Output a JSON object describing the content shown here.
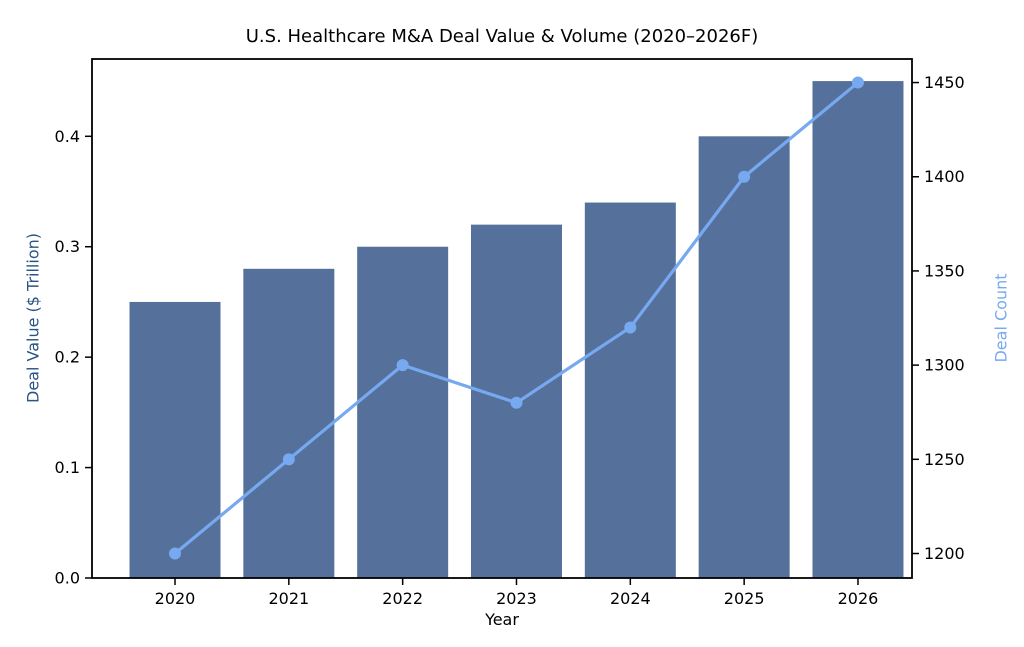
{
  "chart_data": {
    "type": "bar+line (dual axis)",
    "title": "U.S. Healthcare M&A Deal Value & Volume (2020–2026F)",
    "xlabel": "Year",
    "categories": [
      "2020",
      "2021",
      "2022",
      "2023",
      "2024",
      "2025",
      "2026"
    ],
    "series": [
      {
        "name": "Deal Value ($ Trillion)",
        "type": "bar",
        "axis": "left",
        "color": "#55719b",
        "values": [
          0.25,
          0.28,
          0.3,
          0.32,
          0.34,
          0.4,
          0.45
        ]
      },
      {
        "name": "Deal Count",
        "type": "line",
        "axis": "right",
        "color": "#77a9f1",
        "marker": "circle",
        "values": [
          1200,
          1250,
          1300,
          1280,
          1320,
          1400,
          1450
        ]
      }
    ],
    "left_axis": {
      "label": "Deal Value ($ Trillion)",
      "label_color": "#2a5583",
      "tick_labels": [
        "0.0",
        "0.1",
        "0.2",
        "0.3",
        "0.4"
      ],
      "tick_values": [
        0.0,
        0.1,
        0.2,
        0.3,
        0.4
      ],
      "range": [
        0,
        0.47
      ]
    },
    "right_axis": {
      "label": "Deal Count",
      "label_color": "#77a9f1",
      "tick_labels": [
        "1200",
        "1250",
        "1300",
        "1350",
        "1400",
        "1450"
      ],
      "tick_values": [
        1200,
        1250,
        1300,
        1350,
        1400,
        1450
      ],
      "range": [
        1187,
        1462.5
      ]
    },
    "grid": false,
    "legend": "none",
    "background": "#ffffff",
    "tick_label_color": "#000000",
    "spine_color": "#000000"
  }
}
